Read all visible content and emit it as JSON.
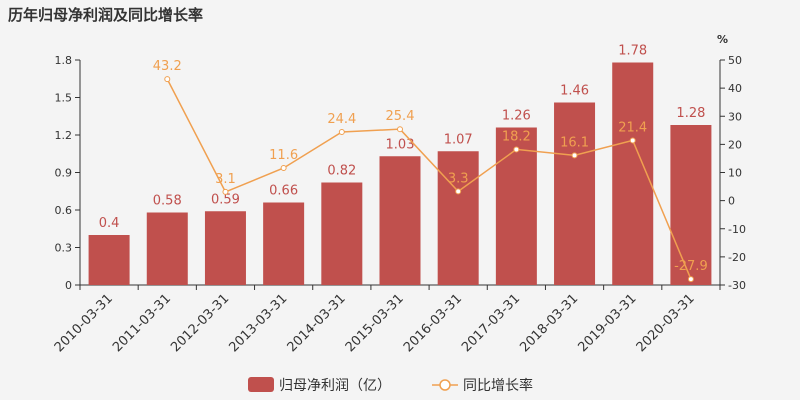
{
  "title": "历年归母净利润及同比增长率",
  "colors": {
    "bar": "#c0504d",
    "line": "#f0a050",
    "axis": "#333333"
  },
  "chart_data": {
    "type": "bar",
    "title": "历年归母净利润及同比增长率",
    "categories": [
      "2010-03-31",
      "2011-03-31",
      "2012-03-31",
      "2013-03-31",
      "2014-03-31",
      "2015-03-31",
      "2016-03-31",
      "2017-03-31",
      "2018-03-31",
      "2019-03-31",
      "2020-03-31"
    ],
    "series": [
      {
        "name": "归母净利润（亿）",
        "type": "bar",
        "axis": "left",
        "values": [
          0.4,
          0.58,
          0.59,
          0.66,
          0.82,
          1.03,
          1.07,
          1.26,
          1.46,
          1.78,
          1.28
        ]
      },
      {
        "name": "同比增长率",
        "type": "line",
        "axis": "right",
        "values": [
          null,
          43.2,
          3.1,
          11.6,
          24.4,
          25.4,
          3.3,
          18.2,
          16.1,
          21.4,
          -27.9
        ]
      }
    ],
    "ylim_left": [
      0,
      1.8
    ],
    "yticks_left": [
      "0",
      "0.3",
      "0.6",
      "0.9",
      "1.2",
      "1.5",
      "1.8"
    ],
    "ylim_right": [
      -30,
      50
    ],
    "yticks_right": [
      "-30",
      "-20",
      "-10",
      "0",
      "10",
      "20",
      "30",
      "40",
      "50"
    ],
    "ylabel_right": "%",
    "legend": "bottom",
    "grid": false
  }
}
